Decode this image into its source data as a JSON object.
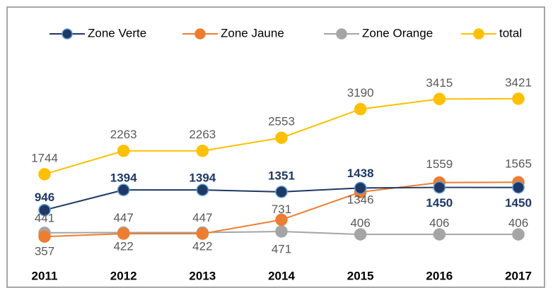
{
  "chart_data": {
    "type": "line",
    "categories": [
      "2011",
      "2012",
      "2013",
      "2014",
      "2015",
      "2016",
      "2017"
    ],
    "series": [
      {
        "name": "Zone Verte",
        "color": "#1f3864",
        "values": [
          946,
          1394,
          1394,
          1351,
          1438,
          1450,
          1450
        ]
      },
      {
        "name": "Zone Jaune",
        "color": "#ed7d31",
        "values": [
          357,
          422,
          422,
          731,
          1346,
          1559,
          1565
        ]
      },
      {
        "name": "Zone Orange",
        "color": "#a5a5a5",
        "values": [
          441,
          447,
          447,
          471,
          406,
          406,
          406
        ]
      },
      {
        "name": "total",
        "color": "#ffc000",
        "values": [
          1744,
          2263,
          2263,
          2553,
          3190,
          3415,
          3421
        ]
      }
    ],
    "ylim": [
      0,
      4000
    ],
    "legend": "top",
    "grid": false
  }
}
